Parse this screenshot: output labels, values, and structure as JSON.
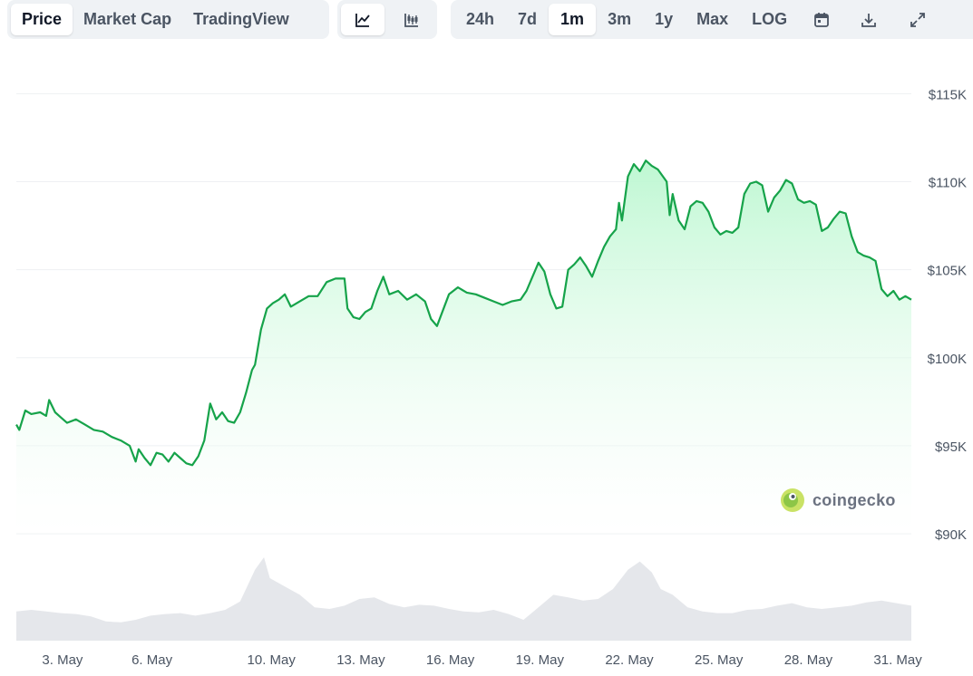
{
  "toolbar": {
    "view_tabs": [
      "Price",
      "Market Cap",
      "TradingView"
    ],
    "active_view": "Price",
    "chart_types": [
      "line-chart-icon",
      "candlestick-icon"
    ],
    "active_chart_type": "line-chart-icon",
    "ranges": [
      "24h",
      "7d",
      "1m",
      "3m",
      "1y",
      "Max",
      "LOG"
    ],
    "active_range": "1m",
    "action_icons": [
      "calendar-icon",
      "download-icon",
      "expand-icon"
    ]
  },
  "watermark": {
    "text": "coingecko"
  },
  "colors": {
    "line": "#16a34a",
    "fill_top": "#bbf7d0",
    "volume": "#e5e7eb",
    "grid": "#eef0f3",
    "axis_text": "#4b5563"
  },
  "chart_data": {
    "type": "area",
    "title": "",
    "xlabel": "",
    "ylabel": "",
    "y_tick_labels": [
      "$115K",
      "$110K",
      "$105K",
      "$100K",
      "$95K",
      "$90K"
    ],
    "y_ticks": [
      115000,
      110000,
      105000,
      100000,
      95000,
      90000
    ],
    "ylim": [
      90000,
      116000
    ],
    "x_tick_labels": [
      "3. May",
      "6. May",
      "10. May",
      "13. May",
      "16. May",
      "19. May",
      "22. May",
      "25. May",
      "28. May",
      "31. May"
    ],
    "x_ticks": [
      3,
      6,
      10,
      13,
      16,
      19,
      22,
      25,
      28,
      31
    ],
    "xlim": [
      2,
      32
    ],
    "grid": true,
    "series": [
      {
        "values": [
          [
            2.0,
            96200
          ],
          [
            2.1,
            95900
          ],
          [
            2.3,
            97000
          ],
          [
            2.5,
            96800
          ],
          [
            2.8,
            96900
          ],
          [
            3.0,
            96700
          ],
          [
            3.1,
            97600
          ],
          [
            3.3,
            96900
          ],
          [
            3.5,
            96600
          ],
          [
            3.7,
            96300
          ],
          [
            4.0,
            96500
          ],
          [
            4.3,
            96200
          ],
          [
            4.6,
            95900
          ],
          [
            4.9,
            95800
          ],
          [
            5.2,
            95500
          ],
          [
            5.5,
            95300
          ],
          [
            5.8,
            95000
          ],
          [
            6.0,
            94100
          ],
          [
            6.1,
            94800
          ],
          [
            6.3,
            94300
          ],
          [
            6.5,
            93900
          ],
          [
            6.7,
            94600
          ],
          [
            6.9,
            94500
          ],
          [
            7.1,
            94100
          ],
          [
            7.3,
            94600
          ],
          [
            7.5,
            94300
          ],
          [
            7.7,
            94000
          ],
          [
            7.9,
            93900
          ],
          [
            8.1,
            94400
          ],
          [
            8.3,
            95300
          ],
          [
            8.5,
            97400
          ],
          [
            8.7,
            96500
          ],
          [
            8.9,
            96900
          ],
          [
            9.1,
            96400
          ],
          [
            9.3,
            96300
          ],
          [
            9.5,
            96900
          ],
          [
            9.7,
            98000
          ],
          [
            9.9,
            99300
          ],
          [
            10.0,
            99600
          ],
          [
            10.2,
            101600
          ],
          [
            10.4,
            102800
          ],
          [
            10.6,
            103100
          ],
          [
            10.8,
            103300
          ],
          [
            11.0,
            103600
          ],
          [
            11.2,
            102900
          ],
          [
            11.5,
            103200
          ],
          [
            11.8,
            103500
          ],
          [
            12.1,
            103500
          ],
          [
            12.4,
            104300
          ],
          [
            12.7,
            104500
          ],
          [
            13.0,
            104500
          ],
          [
            13.1,
            102800
          ],
          [
            13.3,
            102300
          ],
          [
            13.5,
            102200
          ],
          [
            13.7,
            102600
          ],
          [
            13.9,
            102800
          ],
          [
            14.1,
            103800
          ],
          [
            14.3,
            104600
          ],
          [
            14.5,
            103600
          ],
          [
            14.8,
            103800
          ],
          [
            15.1,
            103300
          ],
          [
            15.4,
            103600
          ],
          [
            15.7,
            103200
          ],
          [
            15.9,
            102200
          ],
          [
            16.1,
            101800
          ],
          [
            16.3,
            102700
          ],
          [
            16.5,
            103600
          ],
          [
            16.8,
            104000
          ],
          [
            17.1,
            103700
          ],
          [
            17.4,
            103600
          ],
          [
            17.7,
            103400
          ],
          [
            18.0,
            103200
          ],
          [
            18.3,
            103000
          ],
          [
            18.6,
            103200
          ],
          [
            18.9,
            103300
          ],
          [
            19.1,
            103800
          ],
          [
            19.3,
            104600
          ],
          [
            19.5,
            105400
          ],
          [
            19.7,
            104900
          ],
          [
            19.9,
            103600
          ],
          [
            20.1,
            102800
          ],
          [
            20.3,
            102900
          ],
          [
            20.5,
            105000
          ],
          [
            20.7,
            105300
          ],
          [
            20.9,
            105700
          ],
          [
            21.1,
            105200
          ],
          [
            21.3,
            104600
          ],
          [
            21.5,
            105500
          ],
          [
            21.7,
            106300
          ],
          [
            21.9,
            106900
          ],
          [
            22.1,
            107300
          ],
          [
            22.2,
            108800
          ],
          [
            22.3,
            107800
          ],
          [
            22.5,
            110300
          ],
          [
            22.7,
            111000
          ],
          [
            22.9,
            110600
          ],
          [
            23.1,
            111200
          ],
          [
            23.3,
            110900
          ],
          [
            23.5,
            110700
          ],
          [
            23.8,
            110000
          ],
          [
            23.9,
            108100
          ],
          [
            24.0,
            109300
          ],
          [
            24.2,
            107800
          ],
          [
            24.4,
            107300
          ],
          [
            24.6,
            108600
          ],
          [
            24.8,
            108900
          ],
          [
            25.0,
            108800
          ],
          [
            25.2,
            108300
          ],
          [
            25.4,
            107400
          ],
          [
            25.6,
            107000
          ],
          [
            25.8,
            107200
          ],
          [
            26.0,
            107100
          ],
          [
            26.2,
            107400
          ],
          [
            26.4,
            109300
          ],
          [
            26.6,
            109900
          ],
          [
            26.8,
            110000
          ],
          [
            27.0,
            109800
          ],
          [
            27.2,
            108300
          ],
          [
            27.4,
            109100
          ],
          [
            27.6,
            109500
          ],
          [
            27.8,
            110100
          ],
          [
            28.0,
            109900
          ],
          [
            28.2,
            109000
          ],
          [
            28.4,
            108800
          ],
          [
            28.6,
            108900
          ],
          [
            28.8,
            108700
          ],
          [
            29.0,
            107200
          ],
          [
            29.2,
            107400
          ],
          [
            29.4,
            107900
          ],
          [
            29.6,
            108300
          ],
          [
            29.8,
            108200
          ],
          [
            30.0,
            106900
          ],
          [
            30.2,
            106000
          ],
          [
            30.4,
            105800
          ],
          [
            30.6,
            105700
          ],
          [
            30.8,
            105500
          ],
          [
            31.0,
            103900
          ],
          [
            31.2,
            103500
          ],
          [
            31.4,
            103800
          ],
          [
            31.6,
            103300
          ],
          [
            31.8,
            103500
          ],
          [
            32.0,
            103300
          ]
        ]
      }
    ],
    "volume": {
      "values": [
        [
          2.0,
          0.35
        ],
        [
          2.5,
          0.37
        ],
        [
          3.0,
          0.35
        ],
        [
          3.5,
          0.33
        ],
        [
          4.0,
          0.32
        ],
        [
          4.5,
          0.29
        ],
        [
          5.0,
          0.23
        ],
        [
          5.5,
          0.22
        ],
        [
          6.0,
          0.25
        ],
        [
          6.5,
          0.3
        ],
        [
          7.0,
          0.32
        ],
        [
          7.5,
          0.33
        ],
        [
          8.0,
          0.3
        ],
        [
          8.5,
          0.33
        ],
        [
          9.0,
          0.37
        ],
        [
          9.5,
          0.47
        ],
        [
          10.0,
          0.85
        ],
        [
          10.3,
          1.0
        ],
        [
          10.5,
          0.75
        ],
        [
          11.0,
          0.65
        ],
        [
          11.5,
          0.55
        ],
        [
          12.0,
          0.4
        ],
        [
          12.5,
          0.38
        ],
        [
          13.0,
          0.42
        ],
        [
          13.5,
          0.5
        ],
        [
          14.0,
          0.52
        ],
        [
          14.5,
          0.44
        ],
        [
          15.0,
          0.4
        ],
        [
          15.5,
          0.43
        ],
        [
          16.0,
          0.42
        ],
        [
          16.5,
          0.38
        ],
        [
          17.0,
          0.35
        ],
        [
          17.5,
          0.34
        ],
        [
          18.0,
          0.37
        ],
        [
          18.5,
          0.32
        ],
        [
          19.0,
          0.25
        ],
        [
          19.5,
          0.4
        ],
        [
          20.0,
          0.55
        ],
        [
          20.5,
          0.52
        ],
        [
          21.0,
          0.48
        ],
        [
          21.5,
          0.5
        ],
        [
          22.0,
          0.62
        ],
        [
          22.5,
          0.85
        ],
        [
          22.9,
          0.95
        ],
        [
          23.3,
          0.82
        ],
        [
          23.6,
          0.62
        ],
        [
          24.0,
          0.55
        ],
        [
          24.5,
          0.4
        ],
        [
          25.0,
          0.35
        ],
        [
          25.5,
          0.33
        ],
        [
          26.0,
          0.33
        ],
        [
          26.5,
          0.37
        ],
        [
          27.0,
          0.38
        ],
        [
          27.5,
          0.42
        ],
        [
          28.0,
          0.45
        ],
        [
          28.5,
          0.4
        ],
        [
          29.0,
          0.38
        ],
        [
          29.5,
          0.4
        ],
        [
          30.0,
          0.42
        ],
        [
          30.5,
          0.46
        ],
        [
          31.0,
          0.48
        ],
        [
          31.5,
          0.45
        ],
        [
          32.0,
          0.42
        ]
      ]
    }
  }
}
